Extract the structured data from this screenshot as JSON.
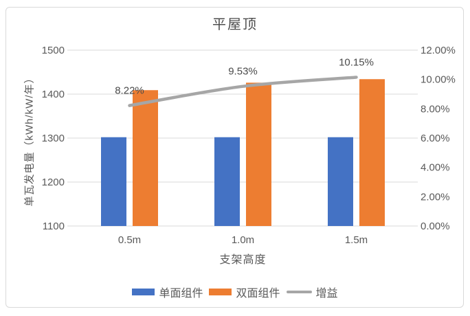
{
  "chart_data": {
    "type": "bar",
    "title": "平屋顶",
    "categories": [
      "0.5m",
      "1.0m",
      "1.5m"
    ],
    "series": [
      {
        "name": "单面组件",
        "kind": "bar",
        "axis": "left",
        "color": "#4472C4",
        "values": [
          1302,
          1302,
          1302
        ]
      },
      {
        "name": "双面组件",
        "kind": "bar",
        "axis": "left",
        "color": "#ED7D31",
        "values": [
          1409,
          1426,
          1434
        ]
      },
      {
        "name": "增益",
        "kind": "line",
        "axis": "right",
        "color": "#A6A6A6",
        "values": [
          8.22,
          9.53,
          10.15
        ],
        "point_labels": [
          "8.22%",
          "9.53%",
          "10.15%"
        ]
      }
    ],
    "xlabel": "支架高度",
    "ylabel_left": "单瓦发电量（kWh/kW/年）",
    "left_axis": {
      "min": 1100,
      "max": 1500,
      "step": 100,
      "tick_labels": [
        "1100",
        "1200",
        "1300",
        "1400",
        "1500"
      ]
    },
    "right_axis": {
      "min": 0,
      "max": 12,
      "step": 2,
      "tick_labels": [
        "0.00%",
        "2.00%",
        "4.00%",
        "6.00%",
        "8.00%",
        "10.00%",
        "12.00%"
      ]
    },
    "grid": true,
    "legend_position": "bottom",
    "colors": {
      "gridline": "#D9D9D9",
      "axis_text": "#595959",
      "data_label_text": "#4a4a4a"
    }
  }
}
